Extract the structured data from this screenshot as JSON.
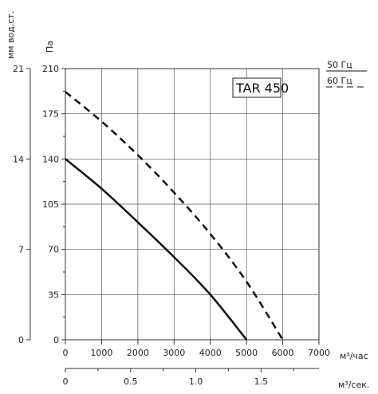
{
  "chart_data": {
    "type": "line",
    "title": "TAR 450",
    "x_axis": {
      "label": "м³/час",
      "range": [
        0,
        7000
      ],
      "ticks": [
        "0",
        "1000",
        "2000",
        "3000",
        "4000",
        "5000",
        "6000",
        "7000"
      ]
    },
    "x2_axis": {
      "label": "м³/сек.",
      "range": [
        0,
        1.944
      ],
      "ticks": [
        "0",
        "0.5",
        "1.0",
        "1.5"
      ]
    },
    "y_axis": {
      "label": "Па",
      "range": [
        0,
        210
      ],
      "ticks": [
        "0",
        "35",
        "70",
        "105",
        "140",
        "175",
        "210"
      ]
    },
    "y2_axis": {
      "label": "мм вод.ст.",
      "range": [
        0,
        21
      ],
      "ticks": [
        "0",
        "7",
        "14",
        "21"
      ]
    },
    "legend": {
      "position": "top-right",
      "items": [
        {
          "label": "50 Гц",
          "style": "solid"
        },
        {
          "label": "60 Гц",
          "style": "dashed"
        }
      ]
    },
    "grid": true,
    "series": [
      {
        "name": "50 Гц",
        "style": "solid",
        "x": [
          0,
          1000,
          2000,
          3000,
          4000,
          5000
        ],
        "y": [
          140,
          117,
          91,
          64,
          35,
          0
        ]
      },
      {
        "name": "60 Гц",
        "style": "dashed",
        "x": [
          0,
          1000,
          2000,
          3000,
          4000,
          5000,
          6000
        ],
        "y": [
          192,
          169,
          143,
          114,
          82,
          45,
          0
        ]
      }
    ]
  },
  "colors": {
    "line": "#111111",
    "grid": "#555555",
    "axis": "#333333"
  }
}
